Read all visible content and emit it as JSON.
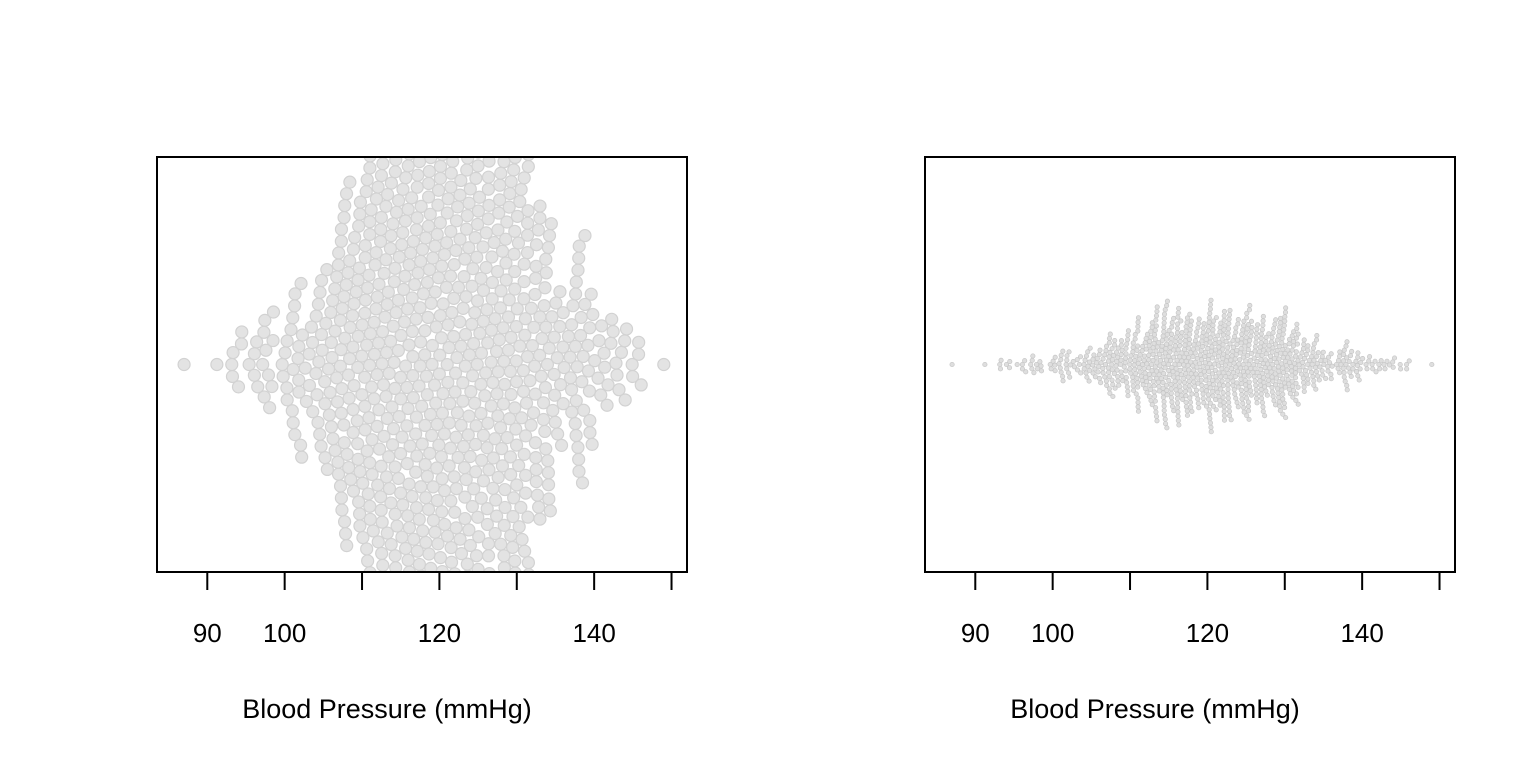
{
  "chart_data": [
    {
      "type": "scatter",
      "style": "beeswarm",
      "title": "",
      "xlabel": "Blood Pressure (mmHg)",
      "ylabel": "",
      "xticks": [
        90,
        100,
        110,
        120,
        130,
        140,
        150
      ],
      "xtick_labels": [
        "90",
        "100",
        "",
        "120",
        "",
        "140",
        ""
      ],
      "xlim": [
        83.5,
        152
      ],
      "point_size": "large",
      "point_color": "#d9d9d9",
      "clipped_at_frame": true,
      "distribution": {
        "n": 1000,
        "mean": 120,
        "sd": 10,
        "min": 87,
        "max": 149
      },
      "grid": false,
      "legend": "none"
    },
    {
      "type": "scatter",
      "style": "beeswarm",
      "title": "",
      "xlabel": "Blood Pressure (mmHg)",
      "ylabel": "",
      "xticks": [
        90,
        100,
        110,
        120,
        130,
        140,
        150
      ],
      "xtick_labels": [
        "90",
        "100",
        "",
        "120",
        "",
        "140",
        ""
      ],
      "xlim": [
        83.5,
        152
      ],
      "point_size": "small",
      "point_color": "#d9d9d9",
      "clipped_at_frame": false,
      "distribution": {
        "n": 1000,
        "mean": 120,
        "sd": 10,
        "min": 87,
        "max": 149
      },
      "grid": false,
      "legend": "none"
    }
  ]
}
